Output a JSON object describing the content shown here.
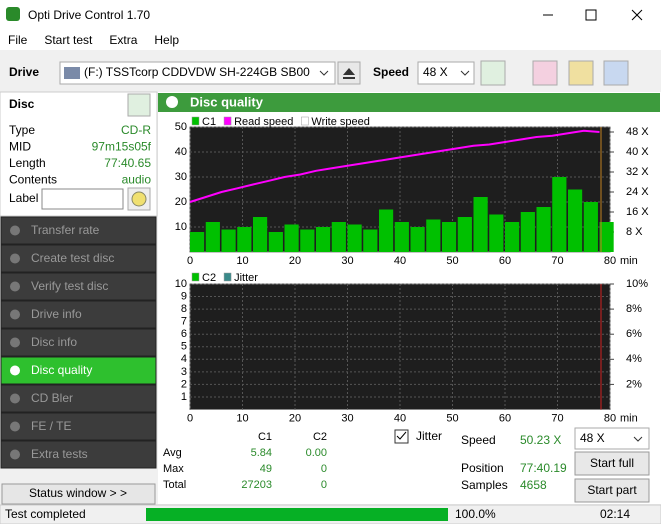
{
  "window": {
    "title": "Opti Drive Control 1.70"
  },
  "menu": [
    "File",
    "Start test",
    "Extra",
    "Help"
  ],
  "toolbar": {
    "drive_label": "Drive",
    "drive": "(F:)   TSSTcorp CDDVDW SH-224GB SB00",
    "speed_label": "Speed",
    "speed": "48 X"
  },
  "disc": {
    "title": "Disc",
    "rows": [
      [
        "Type",
        "CD-R"
      ],
      [
        "MID",
        "97m15s05f"
      ],
      [
        "Length",
        "77:40.65"
      ],
      [
        "Contents",
        "audio"
      ]
    ],
    "label_field": "Label"
  },
  "nav": {
    "items": [
      "Transfer rate",
      "Create test disc",
      "Verify test disc",
      "Drive info",
      "Disc info",
      "Disc quality",
      "CD Bler",
      "FE / TE",
      "Extra tests"
    ],
    "active": 5,
    "status_button": "Status window > >"
  },
  "panel": {
    "title": "Disc quality"
  },
  "chart_data": [
    {
      "type": "bar",
      "x_unit": "min",
      "grid": true,
      "x": [
        0,
        3,
        6,
        9,
        12,
        15,
        18,
        21,
        24,
        27,
        30,
        33,
        36,
        39,
        42,
        45,
        48,
        51,
        54,
        57,
        60,
        63,
        66,
        69,
        72,
        75,
        78
      ],
      "xlim": [
        0,
        80
      ],
      "xticks": [
        0,
        10,
        20,
        30,
        40,
        50,
        60,
        70,
        80
      ],
      "ylim": [
        0,
        50
      ],
      "yticks": [
        10,
        20,
        30,
        40,
        50
      ],
      "y2lim": [
        0,
        50
      ],
      "y2ticks": [
        {
          "value": 8,
          "label": "8 X"
        },
        {
          "value": 16,
          "label": "16 X"
        },
        {
          "value": 24,
          "label": "24 X"
        },
        {
          "value": 32,
          "label": "32 X"
        },
        {
          "value": 40,
          "label": "40 X"
        },
        {
          "value": 48,
          "label": "48 X"
        }
      ],
      "series": [
        {
          "name": "C1",
          "type": "bar",
          "color": "#00c000",
          "values": [
            8,
            12,
            9,
            10,
            14,
            8,
            11,
            9,
            10,
            12,
            11,
            9,
            17,
            12,
            10,
            13,
            12,
            14,
            22,
            15,
            12,
            16,
            18,
            30,
            25,
            20,
            12
          ]
        },
        {
          "name": "Read speed",
          "type": "line",
          "axis": "y2",
          "color": "#ff00ff",
          "values": [
            20,
            22,
            24,
            25.5,
            27,
            28.5,
            30,
            31,
            32.5,
            33.5,
            34.5,
            35.5,
            36.5,
            37.5,
            38.5,
            39.5,
            40.5,
            41.5,
            42.5,
            43,
            44,
            45,
            46,
            46.5,
            47.5,
            48.5,
            48
          ]
        },
        {
          "name": "Write speed",
          "type": "line",
          "axis": "y2",
          "color": "#ffffff",
          "values": [
            null,
            null,
            null,
            null,
            null,
            null,
            null,
            null,
            null,
            null,
            null,
            null,
            null,
            null,
            null,
            null,
            null,
            null,
            null,
            null,
            null,
            null,
            null,
            null,
            null,
            null,
            null
          ]
        }
      ]
    },
    {
      "type": "bar",
      "x_unit": "min",
      "grid": true,
      "x": [
        0,
        78
      ],
      "xlim": [
        0,
        80
      ],
      "xticks": [
        0,
        10,
        20,
        30,
        40,
        50,
        60,
        70,
        80
      ],
      "ylim": [
        0,
        10
      ],
      "yticks": [
        1,
        2,
        3,
        4,
        5,
        6,
        7,
        8,
        9,
        10
      ],
      "y2lim": [
        0,
        10
      ],
      "y2ticks": [
        {
          "value": 2,
          "label": "2%"
        },
        {
          "value": 4,
          "label": "4%"
        },
        {
          "value": 6,
          "label": "6%"
        },
        {
          "value": 8,
          "label": "8%"
        },
        {
          "value": 10,
          "label": "10%"
        }
      ],
      "series": [
        {
          "name": "C2",
          "type": "bar",
          "color": "#00c000",
          "values": [
            0,
            0
          ]
        },
        {
          "name": "Jitter",
          "type": "line",
          "axis": "y2",
          "color": "#3a8a8a",
          "values": [
            null,
            null
          ]
        }
      ]
    }
  ],
  "stats": {
    "header": [
      "C1",
      "C2"
    ],
    "rows": [
      [
        "Avg",
        "5.84",
        "0.00"
      ],
      [
        "Max",
        "49",
        "0"
      ],
      [
        "Total",
        "27203",
        "0"
      ]
    ],
    "jitter_check": "Jitter",
    "speed_label": "Speed",
    "speed": "50.23 X",
    "position_label": "Position",
    "position": "77:40.19",
    "samples_label": "Samples",
    "samples": "4658",
    "speed_select": "48 X",
    "start_full": "Start full",
    "start_part": "Start part"
  },
  "status": {
    "text": "Test completed",
    "progress": "100.0%",
    "time": "02:14"
  }
}
